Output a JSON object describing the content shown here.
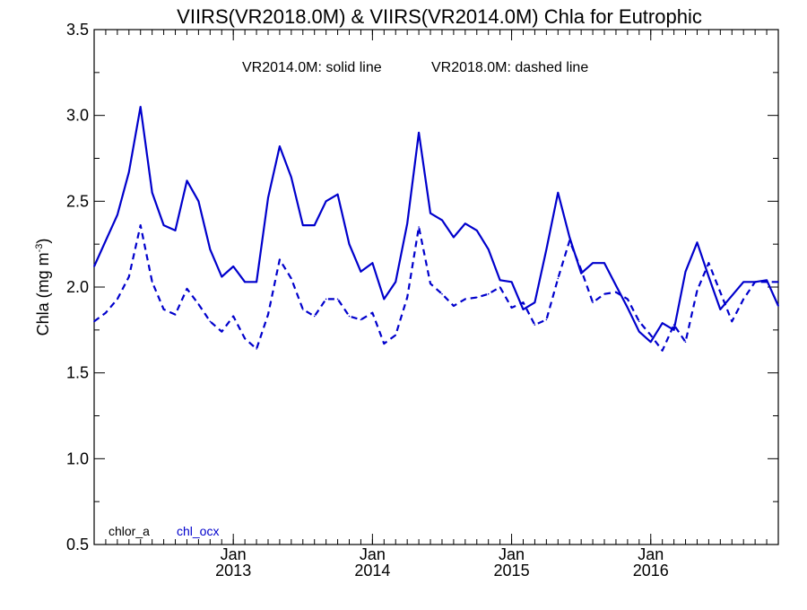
{
  "chart_data": {
    "type": "line",
    "title": "VIIRS(VR2018.0M) & VIIRS(VR2014.0M)  Chla for Eutrophic",
    "subtitle_left": "VR2014.0M: solid line",
    "subtitle_right": "VR2018.0M: dashed line",
    "ylabel_main": "Chla (mg m",
    "ylabel_sup": "-3",
    "ylabel_end": ")",
    "ylim": [
      0.5,
      3.5
    ],
    "yticks": [
      "0.5",
      "1.0",
      "1.5",
      "2.0",
      "2.5",
      "3.0",
      "3.5"
    ],
    "x_start": "2012-01",
    "x_end": "2016-12",
    "xticks": [
      {
        "month": "Jan",
        "year": "2013"
      },
      {
        "month": "Jan",
        "year": "2014"
      },
      {
        "month": "Jan",
        "year": "2015"
      },
      {
        "month": "Jan",
        "year": "2016"
      }
    ],
    "legend": [
      {
        "name": "chlor_a",
        "color": "#000000"
      },
      {
        "name": "chl_ocx",
        "color": "#0000cc"
      }
    ],
    "series": [
      {
        "style": "solid",
        "color": "#0000cc",
        "values": [
          2.12,
          2.27,
          2.42,
          2.67,
          3.05,
          2.55,
          2.36,
          2.33,
          2.62,
          2.5,
          2.22,
          2.06,
          2.12,
          2.03,
          2.03,
          2.52,
          2.82,
          2.64,
          2.36,
          2.36,
          2.5,
          2.54,
          2.25,
          2.09,
          2.14,
          1.93,
          2.03,
          2.37,
          2.9,
          2.43,
          2.39,
          2.29,
          2.37,
          2.33,
          2.22,
          2.04,
          2.03,
          1.87,
          1.91,
          2.22,
          2.55,
          2.29,
          2.08,
          2.14,
          2.14,
          2.01,
          1.88,
          1.74,
          1.68,
          1.79,
          1.75,
          2.09,
          2.26,
          2.06,
          1.87,
          1.95,
          2.03,
          2.03,
          2.04,
          1.89
        ]
      },
      {
        "style": "dashed",
        "color": "#0000cc",
        "values": [
          1.8,
          1.85,
          1.93,
          2.06,
          2.36,
          2.03,
          1.87,
          1.84,
          1.99,
          1.9,
          1.8,
          1.74,
          1.83,
          1.7,
          1.64,
          1.84,
          2.16,
          2.05,
          1.87,
          1.83,
          1.93,
          1.93,
          1.83,
          1.81,
          1.85,
          1.67,
          1.72,
          1.94,
          2.35,
          2.02,
          1.96,
          1.89,
          1.93,
          1.94,
          1.96,
          2.0,
          1.88,
          1.91,
          1.78,
          1.81,
          2.05,
          2.27,
          2.1,
          1.91,
          1.96,
          1.97,
          1.93,
          1.8,
          1.72,
          1.63,
          1.78,
          1.68,
          1.98,
          2.14,
          1.97,
          1.8,
          1.93,
          2.03,
          2.03,
          2.03
        ]
      }
    ]
  }
}
